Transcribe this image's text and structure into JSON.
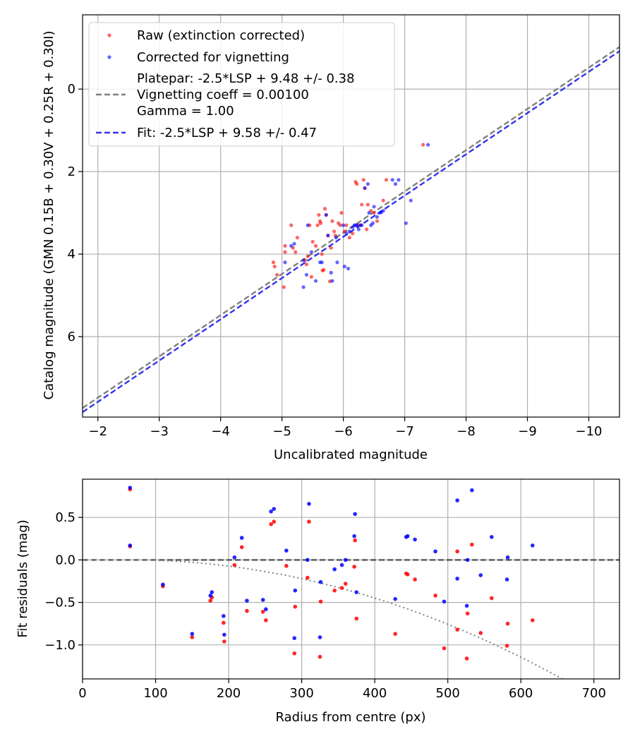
{
  "colors": {
    "raw": "#ff0000",
    "corrected": "#0000ff",
    "platepar_line": "#808080",
    "fit_line": "#3333ee",
    "grid": "#b0b0b0",
    "zero_line": "#555555",
    "vignetting_curve": "#808080"
  },
  "chart_data": [
    {
      "type": "scatter",
      "xlabel": "Uncalibrated magnitude",
      "ylabel": "Catalog magnitude (GMN 0.15B + 0.30V + 0.25R + 0.30I)",
      "xlim": [
        -1.75,
        -10.5
      ],
      "ylim": [
        7.95,
        -1.8
      ],
      "x_inverted": true,
      "y_inverted": true,
      "xticks": [
        -2,
        -3,
        -4,
        -5,
        -6,
        -7,
        -8,
        -9,
        -10
      ],
      "xtick_labels": [
        "−2",
        "−3",
        "−4",
        "−5",
        "−6",
        "−7",
        "−8",
        "−9",
        "−10"
      ],
      "yticks": [
        0,
        2,
        4,
        6
      ],
      "ytick_labels": [
        "0",
        "2",
        "4",
        "6"
      ],
      "grid": true,
      "legend": {
        "position": "upper-left",
        "entries": [
          {
            "label": "Raw (extinction corrected)",
            "marker": "dot",
            "color": "#ff0000"
          },
          {
            "label": "Corrected for vignetting",
            "marker": "dot",
            "color": "#0000ff"
          },
          {
            "label_lines": [
              "Platepar: -2.5*LSP + 9.48 +/- 0.38",
              "Vignetting coeff = 0.00100",
              "Gamma = 1.00"
            ],
            "marker": "dashed-line",
            "color": "#808080"
          },
          {
            "label": "Fit: -2.5*LSP + 9.58 +/- 0.47",
            "marker": "dashed-line",
            "color": "#3333ee"
          }
        ]
      },
      "lines": [
        {
          "name": "Platepar: -2.5*LSP + 9.48 +/- 0.38",
          "slope": 1,
          "intercept": 9.48,
          "style": "dashed",
          "color": "#808080"
        },
        {
          "name": "Fit: -2.5*LSP + 9.58 +/- 0.47",
          "slope": 1,
          "intercept": 9.58,
          "style": "dashed",
          "color": "#3333ee"
        }
      ],
      "series": [
        {
          "name": "Raw (extinction corrected)",
          "color": "#ff0000",
          "points": [
            [
              -4.86,
              4.2
            ],
            [
              -4.88,
              4.3
            ],
            [
              -4.92,
              4.5
            ],
            [
              -5.03,
              4.8
            ],
            [
              -5.05,
              3.8
            ],
            [
              -5.05,
              3.95
            ],
            [
              -5.15,
              3.3
            ],
            [
              -5.18,
              3.85
            ],
            [
              -5.22,
              3.95
            ],
            [
              -5.25,
              3.6
            ],
            [
              -5.38,
              4.15
            ],
            [
              -5.4,
              4.25
            ],
            [
              -5.42,
              4.05
            ],
            [
              -5.45,
              3.3
            ],
            [
              -5.48,
              4.55
            ],
            [
              -5.5,
              3.7
            ],
            [
              -5.55,
              3.8
            ],
            [
              -5.58,
              3.3
            ],
            [
              -5.6,
              3.05
            ],
            [
              -5.62,
              3.2
            ],
            [
              -5.63,
              3.25
            ],
            [
              -5.65,
              4.0
            ],
            [
              -5.66,
              4.4
            ],
            [
              -5.68,
              4.38
            ],
            [
              -5.7,
              2.9
            ],
            [
              -5.72,
              3.05
            ],
            [
              -5.75,
              3.55
            ],
            [
              -5.78,
              4.66
            ],
            [
              -5.8,
              3.85
            ],
            [
              -5.82,
              3.2
            ],
            [
              -5.85,
              3.45
            ],
            [
              -5.87,
              3.55
            ],
            [
              -5.92,
              3.25
            ],
            [
              -5.95,
              3.3
            ],
            [
              -5.97,
              3.0
            ],
            [
              -6.02,
              3.45
            ],
            [
              -6.05,
              3.3
            ],
            [
              -6.1,
              3.6
            ],
            [
              -6.15,
              3.5
            ],
            [
              -6.2,
              2.25
            ],
            [
              -6.22,
              2.3
            ],
            [
              -6.25,
              3.3
            ],
            [
              -6.3,
              2.8
            ],
            [
              -6.33,
              2.2
            ],
            [
              -6.35,
              2.4
            ],
            [
              -6.38,
              3.4
            ],
            [
              -6.4,
              2.8
            ],
            [
              -6.45,
              2.95
            ],
            [
              -6.5,
              3.0
            ],
            [
              -6.55,
              3.2
            ],
            [
              -6.65,
              2.7
            ],
            [
              -6.7,
              2.2
            ],
            [
              -7.3,
              1.35
            ]
          ]
        },
        {
          "name": "Corrected for vignetting",
          "color": "#0000ff",
          "points": [
            [
              -5.05,
              4.2
            ],
            [
              -5.15,
              3.8
            ],
            [
              -5.2,
              3.75
            ],
            [
              -5.35,
              4.15
            ],
            [
              -5.35,
              4.8
            ],
            [
              -5.4,
              4.5
            ],
            [
              -5.42,
              3.3
            ],
            [
              -5.48,
              3.95
            ],
            [
              -5.55,
              4.65
            ],
            [
              -5.62,
              4.2
            ],
            [
              -5.65,
              4.2
            ],
            [
              -5.72,
              3.05
            ],
            [
              -5.75,
              3.55
            ],
            [
              -5.8,
              4.45
            ],
            [
              -5.82,
              4.65
            ],
            [
              -5.88,
              3.6
            ],
            [
              -5.9,
              4.2
            ],
            [
              -6.0,
              3.3
            ],
            [
              -6.02,
              4.3
            ],
            [
              -6.05,
              3.5
            ],
            [
              -6.1,
              3.45
            ],
            [
              -6.15,
              3.35
            ],
            [
              -6.18,
              3.3
            ],
            [
              -6.2,
              3.3
            ],
            [
              -6.22,
              3.3
            ],
            [
              -6.25,
              3.4
            ],
            [
              -6.28,
              3.3
            ],
            [
              -6.3,
              3.3
            ],
            [
              -6.35,
              2.4
            ],
            [
              -6.4,
              2.3
            ],
            [
              -6.42,
              3.0
            ],
            [
              -6.45,
              3.3
            ],
            [
              -6.48,
              3.25
            ],
            [
              -6.5,
              2.85
            ],
            [
              -6.55,
              3.1
            ],
            [
              -6.6,
              3.0
            ],
            [
              -6.65,
              2.95
            ],
            [
              -6.8,
              2.2
            ],
            [
              -6.85,
              2.3
            ],
            [
              -6.9,
              2.2
            ],
            [
              -7.02,
              3.25
            ],
            [
              -7.1,
              2.7
            ],
            [
              -7.38,
              1.35
            ],
            [
              -6.08,
              4.35
            ],
            [
              -6.62,
              2.98
            ]
          ]
        }
      ]
    },
    {
      "type": "scatter",
      "xlabel": "Radius from centre (px)",
      "ylabel": "Fit residuals (mag)",
      "xlim": [
        0,
        735
      ],
      "ylim": [
        -1.4,
        0.95
      ],
      "xticks": [
        0,
        100,
        200,
        300,
        400,
        500,
        600,
        700
      ],
      "xtick_labels": [
        "0",
        "100",
        "200",
        "300",
        "400",
        "500",
        "600",
        "700"
      ],
      "yticks": [
        0.5,
        0.0,
        -0.5,
        -1.0
      ],
      "ytick_labels": [
        "0.5",
        "0.0",
        "−0.5",
        "−1.0"
      ],
      "grid": true,
      "lines": [
        {
          "name": "",
          "type": "horizontal",
          "y": 0.0,
          "style": "dashed",
          "color": "#555555"
        },
        {
          "name": "",
          "type": "vignetting-curve",
          "coeff": 0.001,
          "r_start": 65,
          "style": "dotted",
          "color": "#808080"
        }
      ],
      "series": [
        {
          "name": "Raw (extinction corrected)",
          "color": "#ff0000",
          "points": [
            [
              65,
              0.83
            ],
            [
              65,
              0.16
            ],
            [
              110,
              -0.31
            ],
            [
              150,
              -0.91
            ],
            [
              175,
              -0.48
            ],
            [
              177,
              -0.44
            ],
            [
              193,
              -0.74
            ],
            [
              194,
              -0.96
            ],
            [
              208,
              -0.06
            ],
            [
              218,
              0.15
            ],
            [
              225,
              -0.6
            ],
            [
              247,
              -0.61
            ],
            [
              251,
              -0.71
            ],
            [
              258,
              0.42
            ],
            [
              262,
              0.45
            ],
            [
              279,
              -0.07
            ],
            [
              290,
              -1.1
            ],
            [
              291,
              -0.55
            ],
            [
              308,
              -0.21
            ],
            [
              310,
              0.45
            ],
            [
              325,
              -1.14
            ],
            [
              326,
              -0.49
            ],
            [
              345,
              -0.36
            ],
            [
              355,
              -0.33
            ],
            [
              360,
              -0.28
            ],
            [
              372,
              -0.08
            ],
            [
              373,
              0.23
            ],
            [
              375,
              -0.69
            ],
            [
              428,
              -0.87
            ],
            [
              443,
              -0.16
            ],
            [
              445,
              -0.17
            ],
            [
              455,
              -0.23
            ],
            [
              483,
              -0.42
            ],
            [
              495,
              -1.04
            ],
            [
              513,
              -0.82
            ],
            [
              513,
              0.1
            ],
            [
              526,
              -1.16
            ],
            [
              527,
              -0.63
            ],
            [
              533,
              0.18
            ],
            [
              545,
              -0.86
            ],
            [
              560,
              -0.45
            ],
            [
              581,
              -1.01
            ],
            [
              582,
              -0.75
            ],
            [
              616,
              -0.71
            ]
          ]
        },
        {
          "name": "Corrected for vignetting",
          "color": "#0000ff",
          "points": [
            [
              65,
              0.85
            ],
            [
              65,
              0.17
            ],
            [
              110,
              -0.29
            ],
            [
              150,
              -0.87
            ],
            [
              175,
              -0.42
            ],
            [
              177,
              -0.38
            ],
            [
              193,
              -0.66
            ],
            [
              194,
              -0.88
            ],
            [
              208,
              0.03
            ],
            [
              218,
              0.26
            ],
            [
              225,
              -0.48
            ],
            [
              247,
              -0.47
            ],
            [
              251,
              -0.58
            ],
            [
              258,
              0.57
            ],
            [
              262,
              0.6
            ],
            [
              279,
              0.11
            ],
            [
              290,
              -0.92
            ],
            [
              291,
              -0.36
            ],
            [
              308,
              0.0
            ],
            [
              310,
              0.66
            ],
            [
              325,
              -0.91
            ],
            [
              326,
              -0.26
            ],
            [
              345,
              -0.11
            ],
            [
              355,
              -0.06
            ],
            [
              360,
              0.0
            ],
            [
              372,
              0.28
            ],
            [
              373,
              0.54
            ],
            [
              375,
              -0.38
            ],
            [
              428,
              -0.46
            ],
            [
              443,
              0.27
            ],
            [
              445,
              0.28
            ],
            [
              455,
              0.24
            ],
            [
              483,
              0.1
            ],
            [
              495,
              -0.49
            ],
            [
              513,
              -0.22
            ],
            [
              513,
              0.7
            ],
            [
              526,
              -0.54
            ],
            [
              527,
              0.0
            ],
            [
              533,
              0.82
            ],
            [
              545,
              -0.18
            ],
            [
              560,
              0.27
            ],
            [
              581,
              -0.23
            ],
            [
              582,
              0.03
            ],
            [
              616,
              0.17
            ]
          ]
        }
      ]
    }
  ]
}
